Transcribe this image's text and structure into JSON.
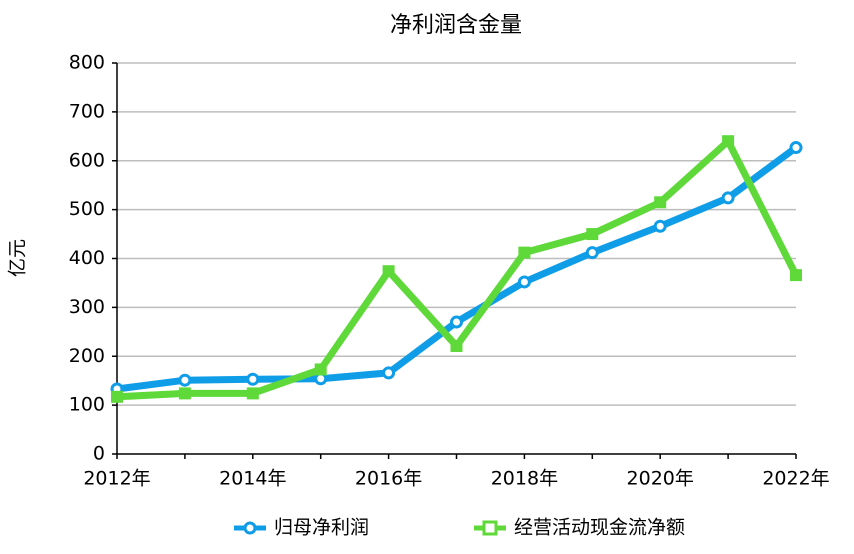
{
  "chart_data": {
    "type": "line",
    "title": "净利润含金量",
    "y_label": "亿元",
    "categories": [
      "2012年",
      null,
      "2014年",
      null,
      "2016年",
      null,
      "2018年",
      null,
      "2020年",
      null,
      "2022年"
    ],
    "series": [
      {
        "name": "归母净利润",
        "color": "#109de8",
        "marker": "circle",
        "values": [
          133,
          151,
          153,
          154,
          166,
          270,
          352,
          412,
          466,
          524,
          627
        ]
      },
      {
        "name": "经营活动现金流净额",
        "color": "#5fd93a",
        "marker": "square",
        "values": [
          117,
          124,
          124,
          173,
          374,
          221,
          412,
          450,
          515,
          640,
          366
        ]
      }
    ],
    "ylim": [
      0,
      800
    ],
    "yticks": [
      0,
      100,
      200,
      300,
      400,
      500,
      600,
      700,
      800
    ],
    "grid": true,
    "legend": "bottom"
  }
}
